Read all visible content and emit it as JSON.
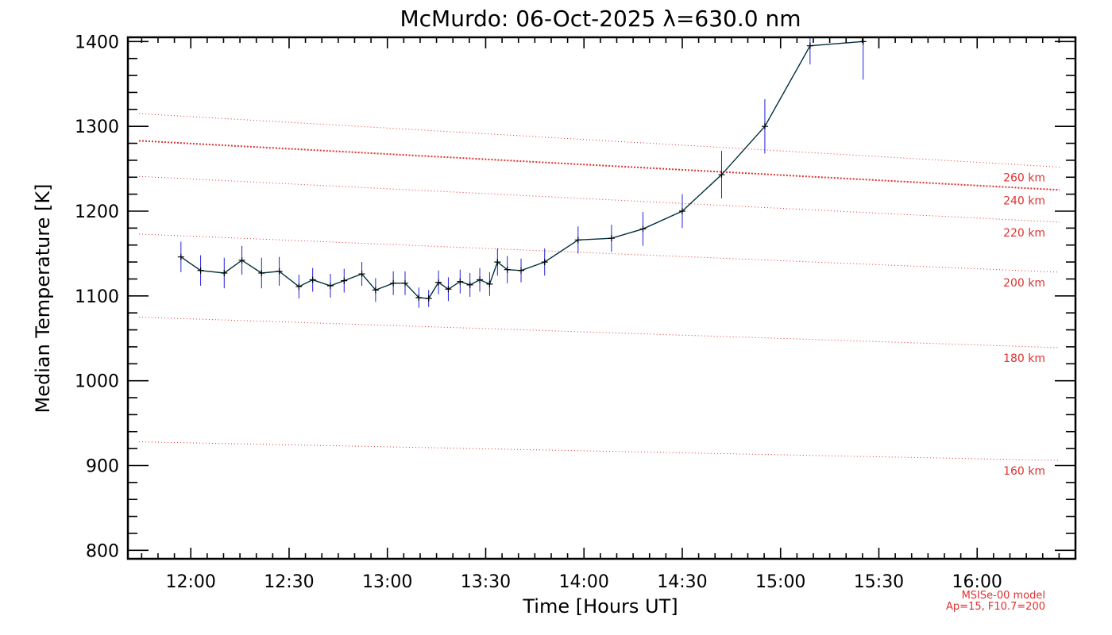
{
  "chart_data": {
    "type": "line",
    "title": "McMurdo: 06-Oct-2025 λ=630.0 nm",
    "xlabel": "Time [Hours UT]",
    "ylabel": "Median Temperature [K]",
    "xlim": [
      11.68,
      16.5
    ],
    "ylim": [
      790,
      1405
    ],
    "x_ticks": [
      {
        "value": 12.0,
        "label": "12:00"
      },
      {
        "value": 12.5,
        "label": "12:30"
      },
      {
        "value": 13.0,
        "label": "13:00"
      },
      {
        "value": 13.5,
        "label": "13:30"
      },
      {
        "value": 14.0,
        "label": "14:00"
      },
      {
        "value": 14.5,
        "label": "14:30"
      },
      {
        "value": 15.0,
        "label": "15:00"
      },
      {
        "value": 15.5,
        "label": "15:30"
      },
      {
        "value": 16.0,
        "label": "16:00"
      }
    ],
    "y_ticks": [
      800,
      900,
      1000,
      1100,
      1200,
      1300,
      1400
    ],
    "grid": false,
    "series": [
      {
        "color": "#003040",
        "error_bar_color": "#2020e0",
        "x": [
          11.95,
          12.05,
          12.17,
          12.26,
          12.36,
          12.45,
          12.55,
          12.62,
          12.71,
          12.78,
          12.87,
          12.94,
          13.03,
          13.09,
          13.16,
          13.21,
          13.26,
          13.31,
          13.37,
          13.42,
          13.47,
          13.52,
          13.56,
          13.61,
          13.68,
          13.8,
          13.97,
          14.14,
          14.3,
          14.5,
          14.7,
          14.92,
          15.15,
          15.42
        ],
        "y": [
          1146,
          1130,
          1127,
          1142,
          1127,
          1129,
          1111,
          1119,
          1112,
          1118,
          1126,
          1107,
          1115,
          1115,
          1098,
          1097,
          1116,
          1108,
          1117,
          1113,
          1119,
          1114,
          1140,
          1131,
          1130,
          1140,
          1166,
          1168,
          1179,
          1200,
          1243,
          1300,
          1395,
          1400
        ],
        "error": [
          18,
          18,
          18,
          17,
          18,
          17,
          14,
          14,
          14,
          14,
          14,
          14,
          14,
          14,
          12,
          10,
          14,
          14,
          14,
          14,
          14,
          14,
          16,
          16,
          14,
          16,
          16,
          16,
          20,
          20,
          28,
          32,
          22,
          45
        ]
      }
    ],
    "model_lines": [
      {
        "label": "160 km",
        "y_start": 928,
        "y_end": 906,
        "emphasis": false
      },
      {
        "label": "180 km",
        "y_start": 1075,
        "y_end": 1039,
        "emphasis": false
      },
      {
        "label": "200 km",
        "y_start": 1173,
        "y_end": 1128,
        "emphasis": false
      },
      {
        "label": "220 km",
        "y_start": 1241,
        "y_end": 1187,
        "emphasis": false
      },
      {
        "label": "240 km",
        "y_start": 1283,
        "y_end": 1225,
        "emphasis": true
      },
      {
        "label": "260 km",
        "y_start": 1315,
        "y_end": 1252,
        "emphasis": false
      }
    ],
    "model_line_color": "#e03030",
    "annotations": [
      "MSISe-00 model",
      "Ap=15, F10.7=200"
    ]
  }
}
